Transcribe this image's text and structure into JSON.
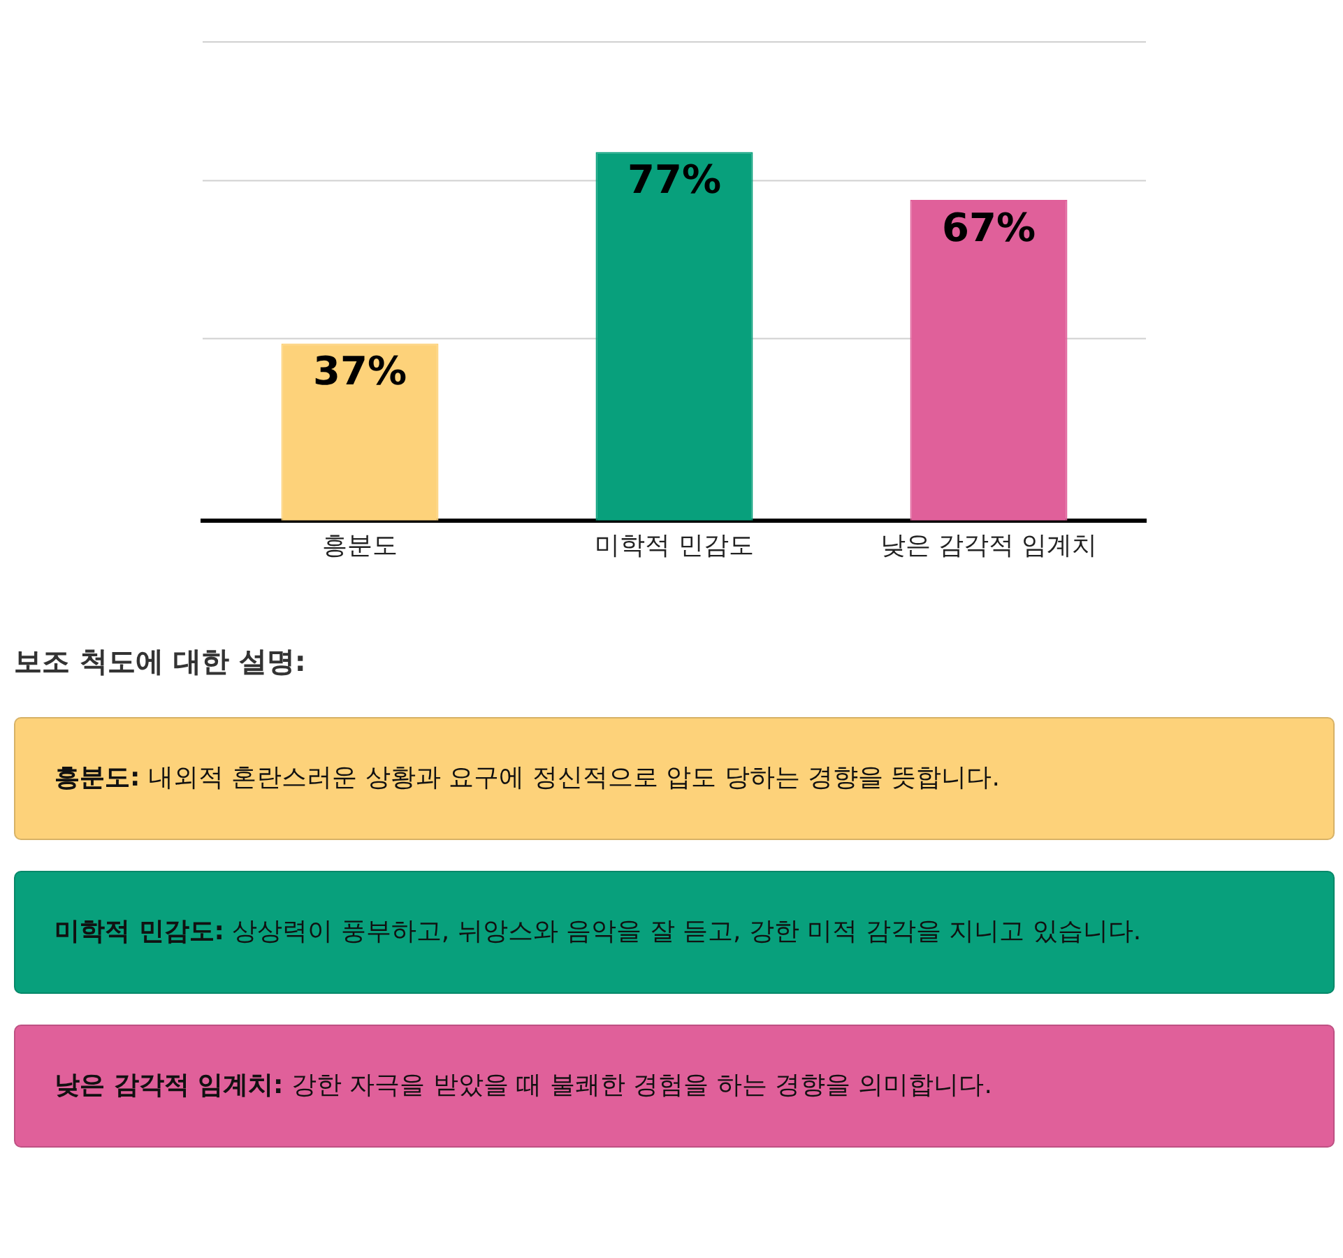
{
  "chart_data": {
    "type": "bar",
    "categories": [
      "흥분도",
      "미학적 민감도",
      "낮은 감각적 임계치"
    ],
    "values": [
      37,
      77,
      67
    ],
    "colors": [
      "#fdd27a",
      "#08a07c",
      "#e0609a"
    ],
    "value_labels": [
      "37%",
      "77%",
      "67%"
    ],
    "tick_labels": "x",
    "ref_lines": [
      {
        "axis": "y",
        "value": 38,
        "color": "#d0d0d0"
      },
      {
        "axis": "y",
        "value": 71,
        "color": "#d0d0d0"
      },
      {
        "axis": "y",
        "value": 100,
        "color": "#d0d0d0"
      }
    ],
    "legend": false,
    "annotations": [
      "보조 척도에 대한 설명:",
      "흥분도: 내외적 혼란스러운 상황과 요구에 정신적으로 압도 당하는 경향을 뜻합니다.",
      "미학적 민감도: 상상력이 풍부하고, 뉘앙스와 음악을 잘 듣고, 강한 미적 감각을 지니고 있습니다.",
      "낮은 감각적 임계치: 강한 자극을 받았을 때 불쾌한 경험을 하는 경향을 의미합니다."
    ]
  }
}
